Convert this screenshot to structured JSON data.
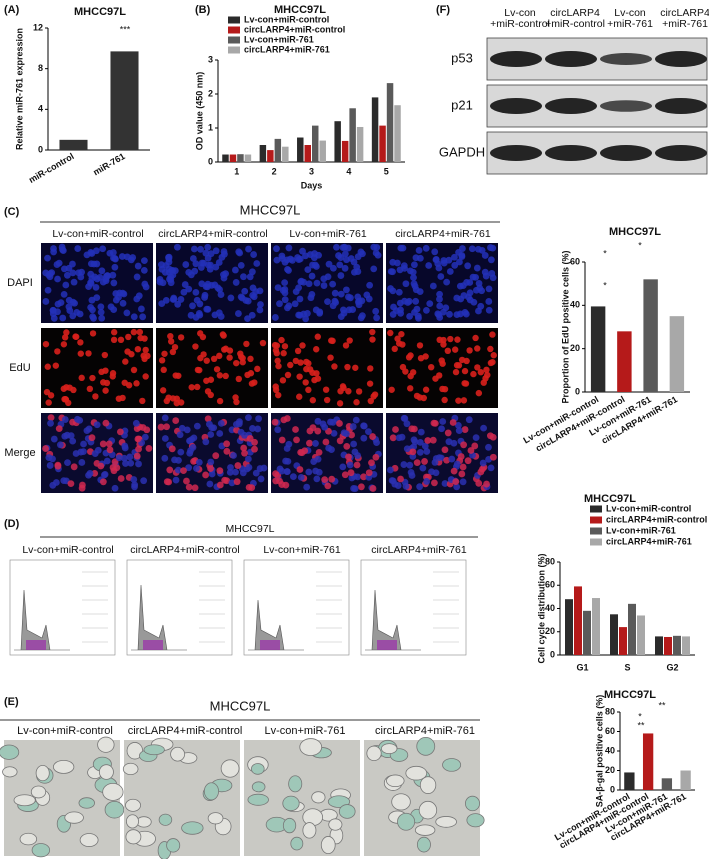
{
  "panel_labels": [
    "(A)",
    "(B)",
    "(C)",
    "(D)",
    "(E)",
    "(F)"
  ],
  "chart_data": [
    {
      "type": "bar",
      "title": "MHCC97L",
      "y_label": "Relative miR-761 expression",
      "categories": [
        "miR-control",
        "miR-761"
      ],
      "values": [
        1,
        9.7
      ],
      "colors": [
        "#333333",
        "#333333"
      ],
      "ylim": [
        0,
        12
      ],
      "yticks": [
        0,
        4,
        8,
        12
      ],
      "annotations": [
        "***"
      ]
    },
    {
      "type": "grouped_bar",
      "title": "MHCC97L",
      "y_label": "OD value (450 nm)",
      "x_label": "Days",
      "categories": [
        "1",
        "2",
        "3",
        "4",
        "5"
      ],
      "series": [
        {
          "name": "Lv-con+miR-control",
          "color": "#2b2b2b",
          "values": [
            0.22,
            0.5,
            0.72,
            1.2,
            1.9
          ]
        },
        {
          "name": "circLARP4+miR-control",
          "color": "#b51a1a",
          "values": [
            0.22,
            0.35,
            0.5,
            0.62,
            1.07
          ]
        },
        {
          "name": "Lv-con+miR-761",
          "color": "#5a5a5a",
          "values": [
            0.23,
            0.68,
            1.07,
            1.58,
            2.32
          ]
        },
        {
          "name": "circLARP4+miR-761",
          "color": "#a8a8a8",
          "values": [
            0.22,
            0.45,
            0.63,
            1.03,
            1.67
          ]
        }
      ],
      "ylim": [
        0,
        3
      ],
      "yticks": [
        0,
        1,
        2,
        3
      ]
    },
    {
      "type": "bar",
      "title": "MHCC97L",
      "y_label": "Proportion of EdU positive cells (%)",
      "categories": [
        "Lv-con+miR-control",
        "circLARP4+miR-control",
        "Lv-con+miR-761",
        "circLARP4+miR-761"
      ],
      "values": [
        39.5,
        28,
        52,
        35
      ],
      "colors": [
        "#2b2b2b",
        "#b51a1a",
        "#5a5a5a",
        "#a8a8a8"
      ],
      "ylim": [
        0,
        60
      ],
      "yticks": [
        0,
        20,
        40,
        60
      ],
      "annotations": [
        "*",
        "*",
        "*"
      ]
    },
    {
      "type": "grouped_bar",
      "title": "MHCC97L",
      "y_label": "Cell cycle distribution (%)",
      "categories": [
        "G1",
        "S",
        "G2"
      ],
      "series": [
        {
          "name": "Lv-con+miR-control",
          "color": "#2b2b2b",
          "values": [
            48,
            35,
            16
          ]
        },
        {
          "name": "circLARP4+miR-control",
          "color": "#b51a1a",
          "values": [
            59,
            24,
            15.5
          ]
        },
        {
          "name": "Lv-con+miR-761",
          "color": "#5a5a5a",
          "values": [
            38,
            44,
            16.5
          ]
        },
        {
          "name": "circLARP4+miR-761",
          "color": "#a8a8a8",
          "values": [
            49,
            34,
            16
          ]
        }
      ],
      "ylim": [
        0,
        80
      ],
      "yticks": [
        0,
        20,
        40,
        60,
        80
      ]
    },
    {
      "type": "bar",
      "title": "MHCC97L",
      "y_label": "SA-β-gal positive cells (%)",
      "categories": [
        "Lv-con+miR-control",
        "circLARP4+miR-control",
        "Lv-con+miR-761",
        "circLARP4+miR-761"
      ],
      "values": [
        18,
        58,
        12,
        20
      ],
      "colors": [
        "#2b2b2b",
        "#b51a1a",
        "#5a5a5a",
        "#a8a8a8"
      ],
      "ylim": [
        0,
        80
      ],
      "yticks": [
        0,
        20,
        40,
        60,
        80
      ],
      "annotations": [
        "*",
        "**",
        "**"
      ]
    }
  ],
  "blot": {
    "columns": [
      [
        "Lv-con",
        "+miR-control"
      ],
      [
        "circLARP4",
        "+miR-control"
      ],
      [
        "Lv-con",
        "+miR-761"
      ],
      [
        "circLARP4",
        "+miR-761"
      ]
    ],
    "rows": [
      "p53",
      "p21",
      "GAPDH"
    ]
  },
  "edu": {
    "title": "MHCC97L",
    "columns": [
      "Lv-con+miR-control",
      "circLARP4+miR-control",
      "Lv-con+miR-761",
      "circLARP4+miR-761"
    ],
    "rows": [
      "DAPI",
      "EdU",
      "Merge"
    ]
  },
  "flow": {
    "title": "MHCC97L",
    "columns": [
      "Lv-con+miR-control",
      "circLARP4+miR-control",
      "Lv-con+miR-761",
      "circLARP4+miR-761"
    ]
  },
  "sa_gal": {
    "title": "MHCC97L",
    "columns": [
      "Lv-con+miR-control",
      "circLARP4+miR-control",
      "Lv-con+miR-761",
      "circLARP4+miR-761"
    ]
  }
}
